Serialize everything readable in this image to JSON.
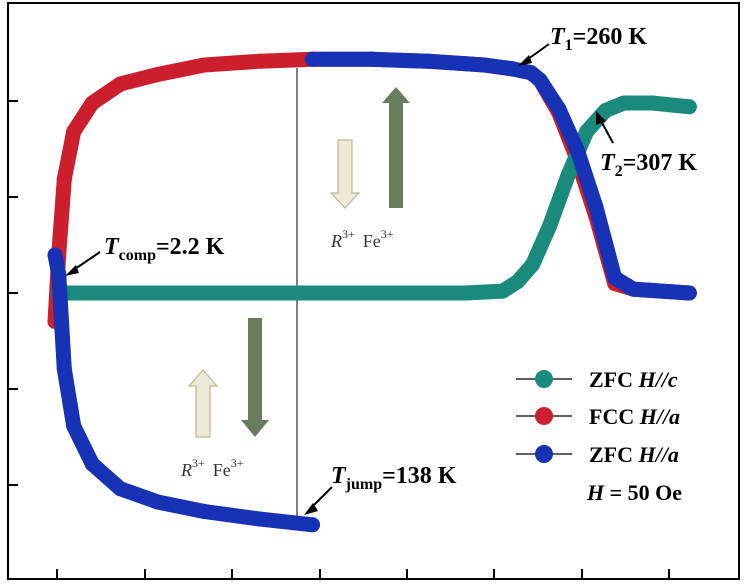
{
  "chart_data": {
    "type": "line",
    "title": "",
    "xlabel": "",
    "ylabel": "",
    "x_tick_labels": [],
    "y_tick_labels": [],
    "xlim": [
      0,
      350
    ],
    "ylim": [
      -1.3,
      1.3
    ],
    "grid": false,
    "legend_position": "bottom-right",
    "series": [
      {
        "name": "ZFC H//c",
        "color": "#1a8a7c",
        "x": [
          2,
          20,
          60,
          100,
          138,
          180,
          220,
          240,
          248,
          256,
          265,
          275,
          285,
          295,
          305,
          307,
          320,
          340
        ],
        "y": [
          0,
          0,
          0,
          0,
          0,
          0,
          0,
          0.01,
          0.06,
          0.15,
          0.35,
          0.62,
          0.85,
          0.96,
          1.0,
          1.0,
          1.0,
          0.98
        ]
      },
      {
        "name": "FCC H//a",
        "color": "#cc1f2e",
        "x": [
          0,
          2,
          5,
          10,
          20,
          35,
          55,
          80,
          110,
          138,
          170,
          200,
          230,
          245,
          255,
          260,
          270,
          280,
          290,
          300,
          310,
          340
        ],
        "y": [
          -0.15,
          0.2,
          0.6,
          0.85,
          1.0,
          1.1,
          1.15,
          1.2,
          1.22,
          1.23,
          1.23,
          1.22,
          1.2,
          1.18,
          1.16,
          1.12,
          0.95,
          0.7,
          0.4,
          0.05,
          0.02,
          0.0
        ]
      },
      {
        "name": "ZFC H//a",
        "color": "#1732b4",
        "x": [
          0,
          2,
          5,
          10,
          20,
          35,
          55,
          80,
          110,
          138,
          138,
          170,
          200,
          230,
          245,
          255,
          260,
          270,
          280,
          290,
          300,
          310,
          340
        ],
        "y": [
          0.2,
          0.1,
          -0.4,
          -0.7,
          -0.9,
          -1.03,
          -1.1,
          -1.15,
          -1.19,
          -1.22,
          1.23,
          1.23,
          1.22,
          1.2,
          1.18,
          1.16,
          1.12,
          0.97,
          0.75,
          0.45,
          0.08,
          0.02,
          0.0
        ]
      }
    ],
    "annotations": {
      "t1": {
        "sym": "T",
        "sub": "1",
        "rest": "=260 K"
      },
      "t2": {
        "sym": "T",
        "sub": "2",
        "rest": "=307 K"
      },
      "tcomp": {
        "sym": "T",
        "sub": "comp",
        "rest": "=2.2 K"
      },
      "tjump": {
        "sym": "T",
        "sub": "jump",
        "rest": "=138 K"
      },
      "spin_upper": {
        "r": "R",
        "r_sup": "3+",
        "fe": "Fe",
        "fe_sup": "3+"
      },
      "spin_lower": {
        "r": "R",
        "r_sup": "3+",
        "fe": "Fe",
        "fe_sup": "3+"
      }
    },
    "legend": {
      "items": [
        {
          "pre": "ZFC ",
          "italic": "H//c"
        },
        {
          "pre": "FCC ",
          "italic": "H//a"
        },
        {
          "pre": "ZFC ",
          "italic": "H//a"
        }
      ],
      "field": {
        "italic": "H",
        "rest": " = 50 Oe"
      }
    }
  }
}
